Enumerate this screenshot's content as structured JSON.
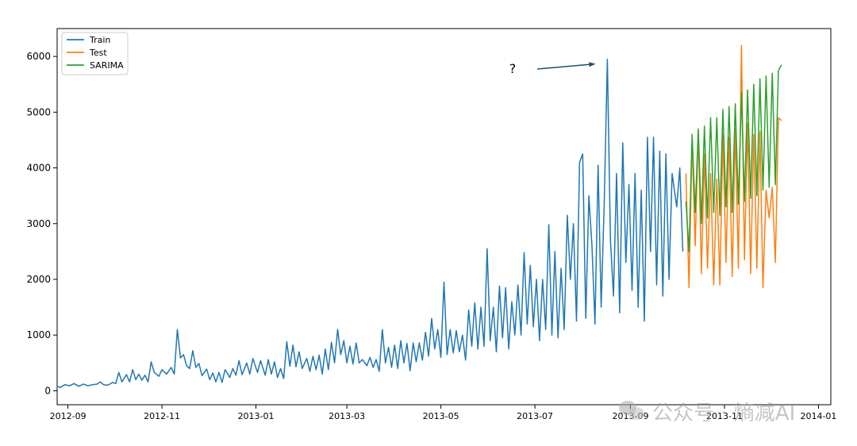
{
  "chart_data": {
    "type": "line",
    "title": "",
    "xlabel": "",
    "ylabel": "",
    "ylim": [
      -250,
      6500
    ],
    "x_start": "2012-08-25",
    "x_end": "2014-01-09",
    "xticks": [
      {
        "date": "2012-09-01",
        "label": "2012-09"
      },
      {
        "date": "2012-11-01",
        "label": "2012-11"
      },
      {
        "date": "2013-01-01",
        "label": "2013-01"
      },
      {
        "date": "2013-03-01",
        "label": "2013-03"
      },
      {
        "date": "2013-05-01",
        "label": "2013-05"
      },
      {
        "date": "2013-07-01",
        "label": "2013-07"
      },
      {
        "date": "2013-09-01",
        "label": "2013-09"
      },
      {
        "date": "2013-11-01",
        "label": "2013-11"
      },
      {
        "date": "2014-01-01",
        "label": "2014-01"
      }
    ],
    "yticks": [
      0,
      1000,
      2000,
      3000,
      4000,
      5000,
      6000
    ],
    "grid": false,
    "legend_position": "top-left",
    "series": [
      {
        "name": "Train",
        "color": "#1f77b4",
        "points": [
          [
            "2012-08-25",
            80
          ],
          [
            "2012-08-27",
            60
          ],
          [
            "2012-08-30",
            110
          ],
          [
            "2012-09-02",
            90
          ],
          [
            "2012-09-05",
            130
          ],
          [
            "2012-09-08",
            80
          ],
          [
            "2012-09-11",
            120
          ],
          [
            "2012-09-14",
            90
          ],
          [
            "2012-09-17",
            110
          ],
          [
            "2012-09-20",
            120
          ],
          [
            "2012-09-22",
            160
          ],
          [
            "2012-09-24",
            110
          ],
          [
            "2012-09-27",
            100
          ],
          [
            "2012-09-30",
            150
          ],
          [
            "2012-10-02",
            130
          ],
          [
            "2012-10-04",
            330
          ],
          [
            "2012-10-06",
            160
          ],
          [
            "2012-10-09",
            290
          ],
          [
            "2012-10-11",
            160
          ],
          [
            "2012-10-13",
            380
          ],
          [
            "2012-10-15",
            200
          ],
          [
            "2012-10-17",
            300
          ],
          [
            "2012-10-19",
            190
          ],
          [
            "2012-10-21",
            280
          ],
          [
            "2012-10-23",
            160
          ],
          [
            "2012-10-25",
            520
          ],
          [
            "2012-10-27",
            330
          ],
          [
            "2012-10-30",
            260
          ],
          [
            "2012-11-01",
            380
          ],
          [
            "2012-11-04",
            300
          ],
          [
            "2012-11-07",
            420
          ],
          [
            "2012-11-09",
            300
          ],
          [
            "2012-11-11",
            1100
          ],
          [
            "2012-11-13",
            590
          ],
          [
            "2012-11-15",
            650
          ],
          [
            "2012-11-17",
            450
          ],
          [
            "2012-11-19",
            400
          ],
          [
            "2012-11-21",
            720
          ],
          [
            "2012-11-23",
            420
          ],
          [
            "2012-11-25",
            490
          ],
          [
            "2012-11-27",
            270
          ],
          [
            "2012-11-30",
            390
          ],
          [
            "2012-12-02",
            200
          ],
          [
            "2012-12-04",
            320
          ],
          [
            "2012-12-06",
            160
          ],
          [
            "2012-12-08",
            330
          ],
          [
            "2012-12-10",
            150
          ],
          [
            "2012-12-12",
            380
          ],
          [
            "2012-12-15",
            240
          ],
          [
            "2012-12-17",
            400
          ],
          [
            "2012-12-19",
            280
          ],
          [
            "2012-12-21",
            540
          ],
          [
            "2012-12-23",
            290
          ],
          [
            "2012-12-26",
            500
          ],
          [
            "2012-12-28",
            300
          ],
          [
            "2012-12-30",
            580
          ],
          [
            "2013-01-02",
            330
          ],
          [
            "2013-01-04",
            540
          ],
          [
            "2013-01-07",
            280
          ],
          [
            "2013-01-09",
            560
          ],
          [
            "2013-01-11",
            300
          ],
          [
            "2013-01-13",
            520
          ],
          [
            "2013-01-15",
            240
          ],
          [
            "2013-01-17",
            400
          ],
          [
            "2013-01-19",
            220
          ],
          [
            "2013-01-21",
            880
          ],
          [
            "2013-01-23",
            440
          ],
          [
            "2013-01-25",
            820
          ],
          [
            "2013-01-27",
            430
          ],
          [
            "2013-01-29",
            700
          ],
          [
            "2013-01-31",
            400
          ],
          [
            "2013-02-03",
            580
          ],
          [
            "2013-02-05",
            350
          ],
          [
            "2013-02-07",
            620
          ],
          [
            "2013-02-09",
            380
          ],
          [
            "2013-02-11",
            640
          ],
          [
            "2013-02-13",
            300
          ],
          [
            "2013-02-15",
            750
          ],
          [
            "2013-02-17",
            380
          ],
          [
            "2013-02-19",
            870
          ],
          [
            "2013-02-21",
            500
          ],
          [
            "2013-02-23",
            1100
          ],
          [
            "2013-02-25",
            650
          ],
          [
            "2013-02-27",
            900
          ],
          [
            "2013-03-01",
            500
          ],
          [
            "2013-03-03",
            800
          ],
          [
            "2013-03-05",
            480
          ],
          [
            "2013-03-07",
            860
          ],
          [
            "2013-03-09",
            500
          ],
          [
            "2013-03-11",
            560
          ],
          [
            "2013-03-14",
            450
          ],
          [
            "2013-03-16",
            600
          ],
          [
            "2013-03-18",
            420
          ],
          [
            "2013-03-20",
            560
          ],
          [
            "2013-03-22",
            350
          ],
          [
            "2013-03-24",
            1100
          ],
          [
            "2013-03-26",
            500
          ],
          [
            "2013-03-28",
            780
          ],
          [
            "2013-03-30",
            420
          ],
          [
            "2013-04-01",
            820
          ],
          [
            "2013-04-03",
            400
          ],
          [
            "2013-04-05",
            900
          ],
          [
            "2013-04-07",
            500
          ],
          [
            "2013-04-09",
            850
          ],
          [
            "2013-04-11",
            360
          ],
          [
            "2013-04-13",
            860
          ],
          [
            "2013-04-15",
            520
          ],
          [
            "2013-04-17",
            860
          ],
          [
            "2013-04-19",
            550
          ],
          [
            "2013-04-21",
            1050
          ],
          [
            "2013-04-23",
            620
          ],
          [
            "2013-04-25",
            1300
          ],
          [
            "2013-04-27",
            750
          ],
          [
            "2013-04-29",
            1100
          ],
          [
            "2013-05-01",
            600
          ],
          [
            "2013-05-03",
            1950
          ],
          [
            "2013-05-05",
            650
          ],
          [
            "2013-05-07",
            1100
          ],
          [
            "2013-05-09",
            680
          ],
          [
            "2013-05-11",
            1080
          ],
          [
            "2013-05-13",
            700
          ],
          [
            "2013-05-15",
            1000
          ],
          [
            "2013-05-17",
            550
          ],
          [
            "2013-05-19",
            1450
          ],
          [
            "2013-05-21",
            800
          ],
          [
            "2013-05-23",
            1580
          ],
          [
            "2013-05-25",
            750
          ],
          [
            "2013-05-27",
            1500
          ],
          [
            "2013-05-29",
            800
          ],
          [
            "2013-05-31",
            2550
          ],
          [
            "2013-06-02",
            900
          ],
          [
            "2013-06-04",
            1500
          ],
          [
            "2013-06-06",
            700
          ],
          [
            "2013-06-08",
            1880
          ],
          [
            "2013-06-10",
            950
          ],
          [
            "2013-06-12",
            1850
          ],
          [
            "2013-06-14",
            750
          ],
          [
            "2013-06-16",
            1600
          ],
          [
            "2013-06-18",
            1000
          ],
          [
            "2013-06-20",
            1900
          ],
          [
            "2013-06-22",
            1000
          ],
          [
            "2013-06-24",
            2480
          ],
          [
            "2013-06-26",
            1200
          ],
          [
            "2013-06-28",
            2250
          ],
          [
            "2013-06-30",
            1150
          ],
          [
            "2013-07-02",
            2000
          ],
          [
            "2013-07-04",
            900
          ],
          [
            "2013-07-06",
            2000
          ],
          [
            "2013-07-08",
            1100
          ],
          [
            "2013-07-10",
            2980
          ],
          [
            "2013-07-12",
            1000
          ],
          [
            "2013-07-14",
            2500
          ],
          [
            "2013-07-16",
            950
          ],
          [
            "2013-07-18",
            2200
          ],
          [
            "2013-07-20",
            1100
          ],
          [
            "2013-07-22",
            3150
          ],
          [
            "2013-07-24",
            2000
          ],
          [
            "2013-07-26",
            3000
          ],
          [
            "2013-07-28",
            1250
          ],
          [
            "2013-07-30",
            4100
          ],
          [
            "2013-08-01",
            4250
          ],
          [
            "2013-08-03",
            1300
          ],
          [
            "2013-08-05",
            3500
          ],
          [
            "2013-08-07",
            2600
          ],
          [
            "2013-08-09",
            1200
          ],
          [
            "2013-08-11",
            4050
          ],
          [
            "2013-08-13",
            1500
          ],
          [
            "2013-08-15",
            3400
          ],
          [
            "2013-08-17",
            5950
          ],
          [
            "2013-08-19",
            2700
          ],
          [
            "2013-08-21",
            1700
          ],
          [
            "2013-08-23",
            3900
          ],
          [
            "2013-08-25",
            1400
          ],
          [
            "2013-08-27",
            4450
          ],
          [
            "2013-08-29",
            2300
          ],
          [
            "2013-08-31",
            3700
          ],
          [
            "2013-09-02",
            1800
          ],
          [
            "2013-09-04",
            3900
          ],
          [
            "2013-09-06",
            1500
          ],
          [
            "2013-09-08",
            3600
          ],
          [
            "2013-09-10",
            1250
          ],
          [
            "2013-09-12",
            4550
          ],
          [
            "2013-09-14",
            2500
          ],
          [
            "2013-09-16",
            4550
          ],
          [
            "2013-09-18",
            1900
          ],
          [
            "2013-09-20",
            4300
          ],
          [
            "2013-09-22",
            1700
          ],
          [
            "2013-09-24",
            4250
          ],
          [
            "2013-09-26",
            2000
          ],
          [
            "2013-09-28",
            3900
          ],
          [
            "2013-10-01",
            3300
          ],
          [
            "2013-10-03",
            4000
          ],
          [
            "2013-10-05",
            2500
          ]
        ]
      },
      {
        "name": "Test",
        "color": "#ff7f0e",
        "points": [
          [
            "2013-10-07",
            3900
          ],
          [
            "2013-10-09",
            1850
          ],
          [
            "2013-10-11",
            4500
          ],
          [
            "2013-10-13",
            2600
          ],
          [
            "2013-10-15",
            4650
          ],
          [
            "2013-10-17",
            2100
          ],
          [
            "2013-10-19",
            4250
          ],
          [
            "2013-10-21",
            2200
          ],
          [
            "2013-10-23",
            3900
          ],
          [
            "2013-10-25",
            1900
          ],
          [
            "2013-10-27",
            3800
          ],
          [
            "2013-10-29",
            1900
          ],
          [
            "2013-10-31",
            4600
          ],
          [
            "2013-11-02",
            2300
          ],
          [
            "2013-11-04",
            4550
          ],
          [
            "2013-11-06",
            2050
          ],
          [
            "2013-11-08",
            4700
          ],
          [
            "2013-11-10",
            2200
          ],
          [
            "2013-11-12",
            6200
          ],
          [
            "2013-11-14",
            2350
          ],
          [
            "2013-11-16",
            4800
          ],
          [
            "2013-11-18",
            2100
          ],
          [
            "2013-11-20",
            4600
          ],
          [
            "2013-11-22",
            2200
          ],
          [
            "2013-11-24",
            4650
          ],
          [
            "2013-11-26",
            1850
          ],
          [
            "2013-11-28",
            3600
          ],
          [
            "2013-11-30",
            3100
          ],
          [
            "2013-12-02",
            3650
          ],
          [
            "2013-12-04",
            2300
          ],
          [
            "2013-12-06",
            4900
          ],
          [
            "2013-12-08",
            4850
          ]
        ]
      },
      {
        "name": "SARIMA",
        "color": "#2ca02c",
        "points": [
          [
            "2013-10-07",
            3400
          ],
          [
            "2013-10-09",
            2500
          ],
          [
            "2013-10-11",
            4600
          ],
          [
            "2013-10-13",
            3200
          ],
          [
            "2013-10-15",
            4700
          ],
          [
            "2013-10-17",
            3000
          ],
          [
            "2013-10-19",
            4750
          ],
          [
            "2013-10-21",
            3100
          ],
          [
            "2013-10-23",
            4900
          ],
          [
            "2013-10-25",
            3200
          ],
          [
            "2013-10-27",
            4900
          ],
          [
            "2013-10-29",
            3150
          ],
          [
            "2013-10-31",
            5050
          ],
          [
            "2013-11-02",
            3300
          ],
          [
            "2013-11-04",
            5100
          ],
          [
            "2013-11-06",
            3200
          ],
          [
            "2013-11-08",
            5150
          ],
          [
            "2013-11-10",
            3350
          ],
          [
            "2013-11-12",
            5350
          ],
          [
            "2013-11-14",
            3400
          ],
          [
            "2013-11-16",
            5400
          ],
          [
            "2013-11-18",
            3450
          ],
          [
            "2013-11-20",
            5500
          ],
          [
            "2013-11-22",
            3500
          ],
          [
            "2013-11-24",
            5600
          ],
          [
            "2013-11-26",
            3600
          ],
          [
            "2013-11-28",
            5650
          ],
          [
            "2013-11-30",
            3650
          ],
          [
            "2013-12-02",
            5700
          ],
          [
            "2013-12-04",
            3700
          ],
          [
            "2013-12-06",
            5750
          ],
          [
            "2013-12-08",
            5850
          ]
        ]
      }
    ],
    "annotations": [
      {
        "text": "?",
        "arrow_to_date": "2013-08-17",
        "arrow_to_value": 5950
      }
    ]
  },
  "watermark": {
    "text": "公众号 · 熵减AI",
    "icon": "wechat-icon"
  }
}
